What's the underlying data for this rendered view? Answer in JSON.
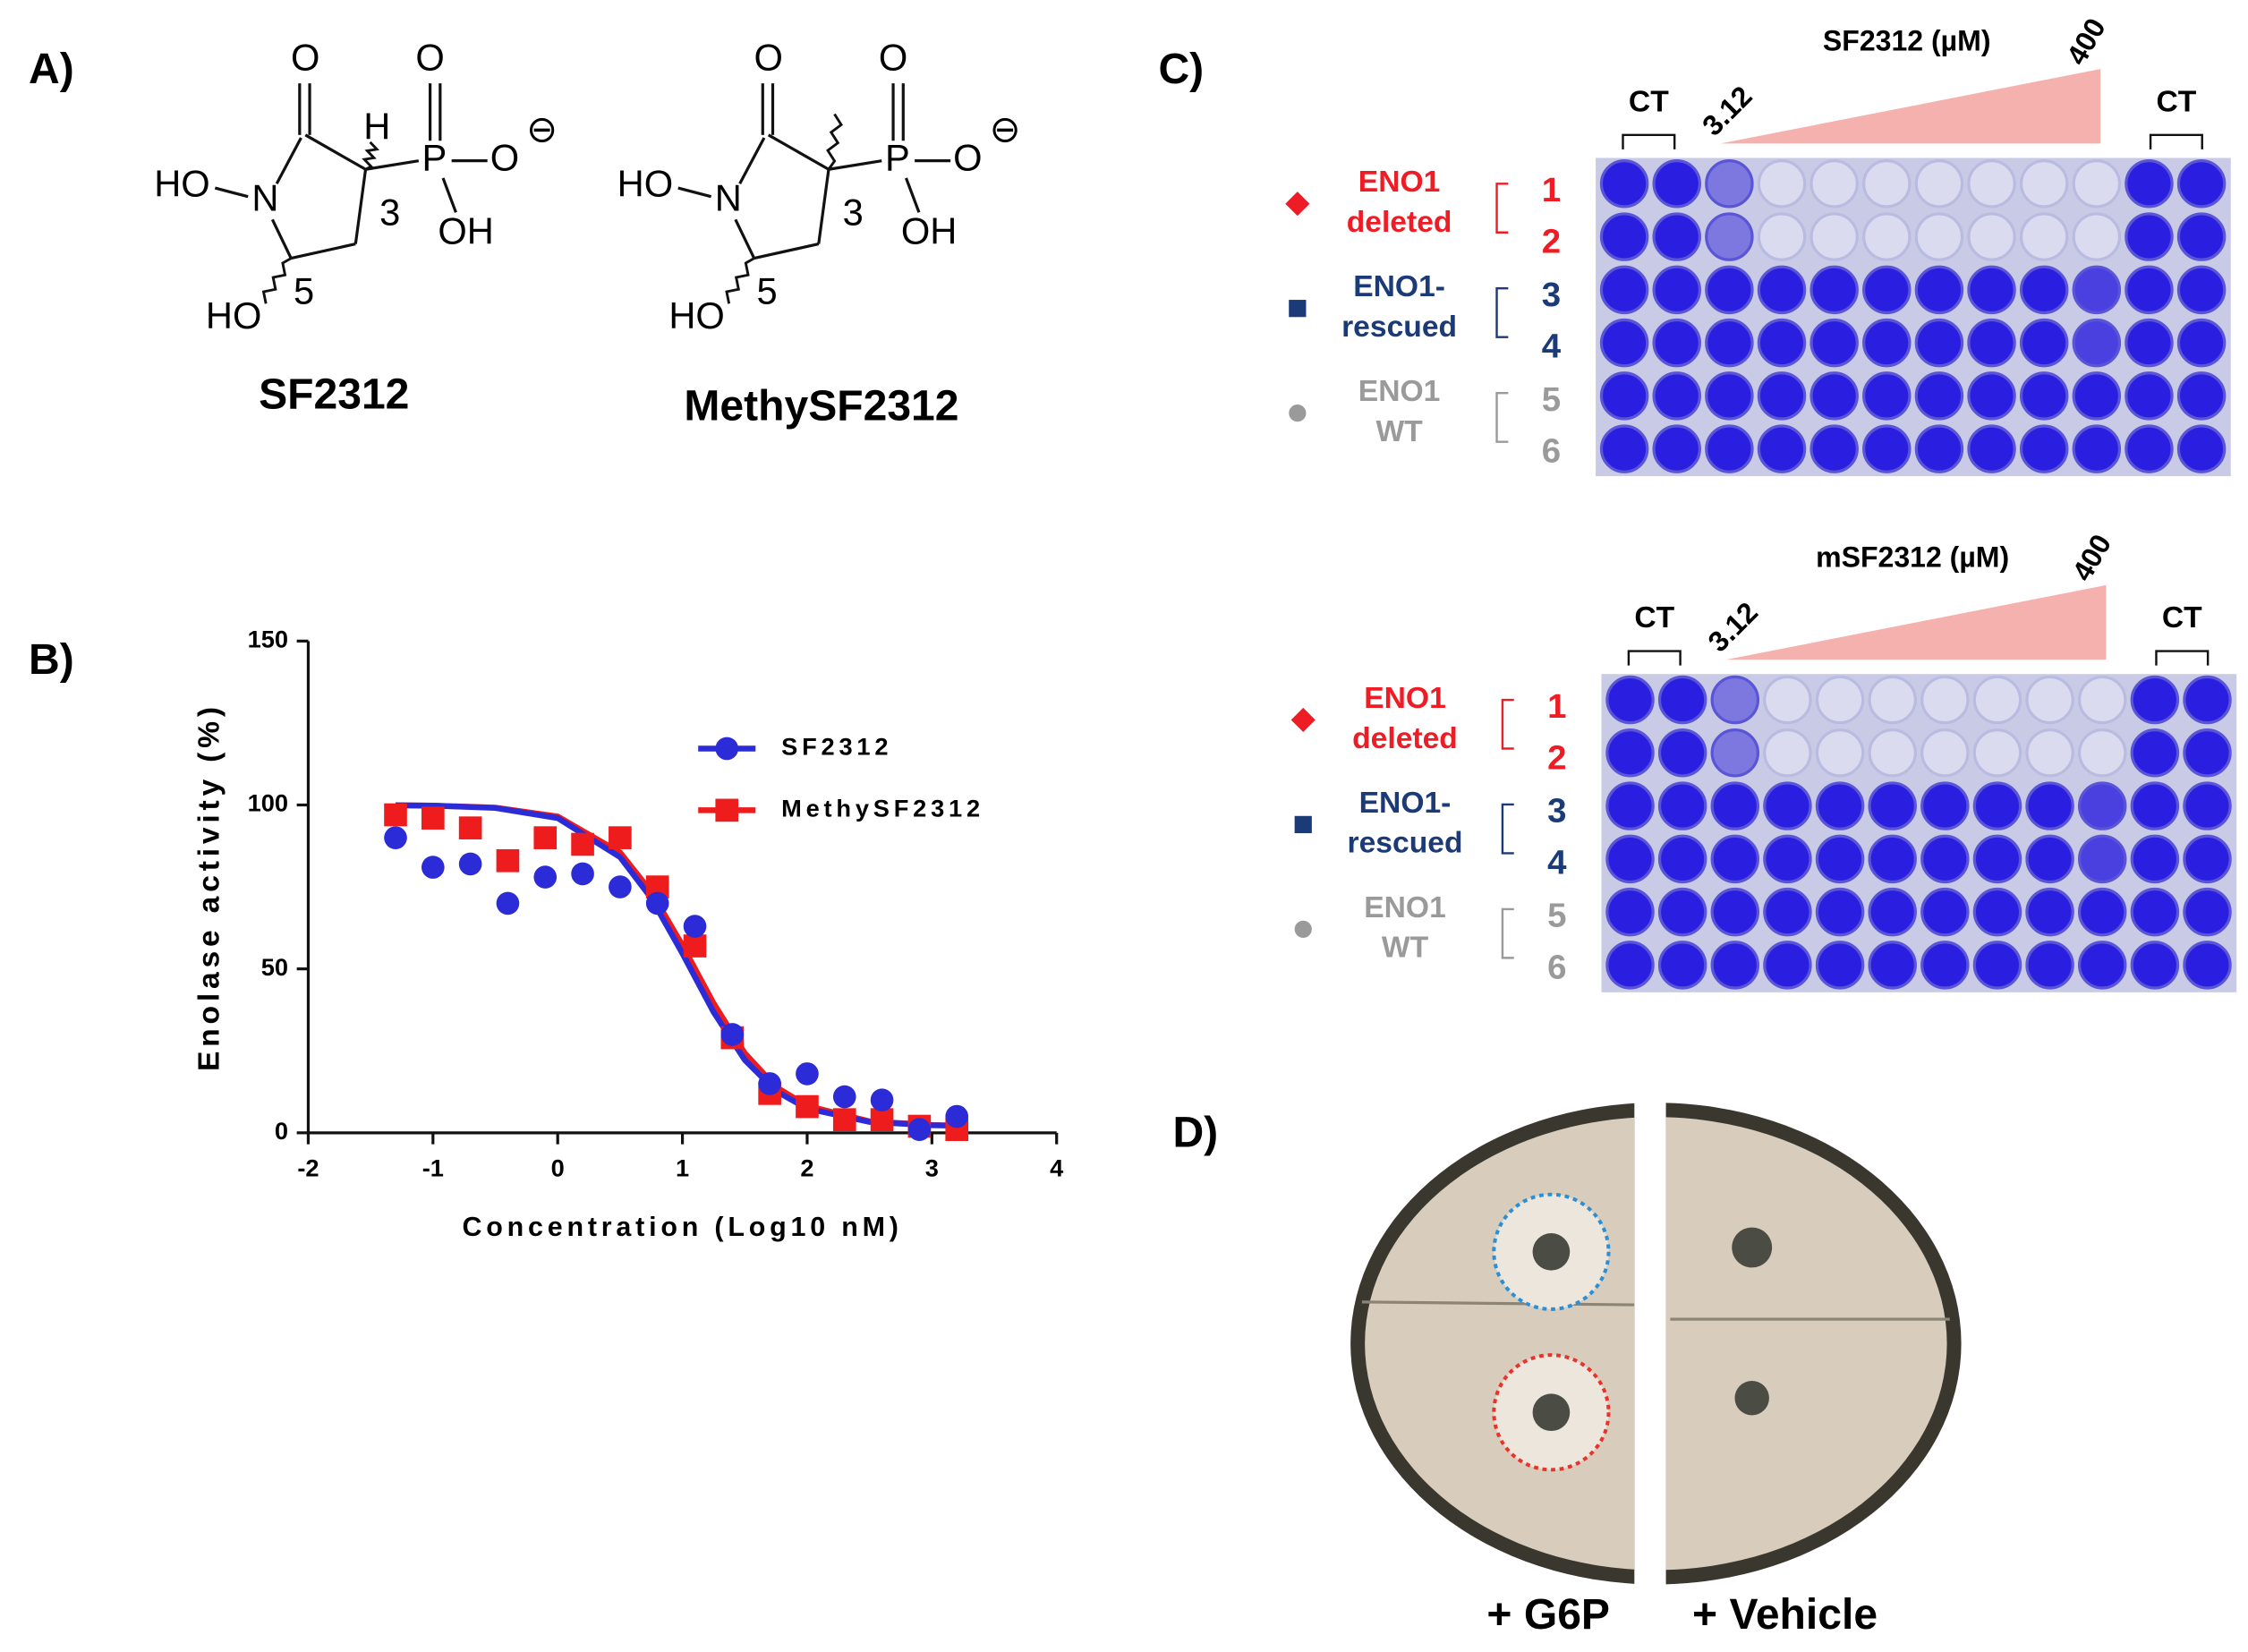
{
  "panel_labels": [
    "A)",
    "B)",
    "C)",
    "D)"
  ],
  "panel_a": {
    "structures": [
      {
        "name": "SF2312",
        "labels": [
          "O",
          "H",
          "O",
          "P",
          "O",
          "⊖",
          "OH",
          "HO",
          "N",
          "3",
          "HO",
          "5"
        ]
      },
      {
        "name": "MethySF2312",
        "labels": [
          "O",
          "O",
          "P",
          "O",
          "⊖",
          "OH",
          "HO",
          "N",
          "3",
          "HO",
          "5"
        ]
      }
    ]
  },
  "chart_data": {
    "type": "scatter",
    "xlabel": "Concentration (Log10 nM)",
    "ylabel": "Enolase activity (%)",
    "xlim": [
      -2,
      4
    ],
    "ylim": [
      0,
      150
    ],
    "xticks": [
      -2,
      -1,
      0,
      1,
      2,
      3,
      4
    ],
    "yticks": [
      0,
      50,
      100,
      150
    ],
    "legend": "upper right",
    "series": [
      {
        "name": "SF2312",
        "color": "#2b2bd8",
        "marker": "circle",
        "x": [
          -1.3,
          -1.0,
          -0.7,
          -0.4,
          -0.1,
          0.2,
          0.5,
          0.8,
          1.1,
          1.4,
          1.7,
          2.0,
          2.3,
          2.6,
          2.9,
          3.2
        ],
        "values": [
          90,
          81,
          82,
          70,
          78,
          79,
          75,
          70,
          63,
          30,
          15,
          18,
          11,
          10,
          1,
          5
        ],
        "fit_x": [
          -1.3,
          -1.0,
          -0.5,
          0,
          0.5,
          0.75,
          1.0,
          1.25,
          1.5,
          1.75,
          2.0,
          2.5,
          3.0,
          3.2
        ],
        "fit_values": [
          99.9,
          99.8,
          99.1,
          96.0,
          84.1,
          71.6,
          54.7,
          36.8,
          22.2,
          12.7,
          7.4,
          3.3,
          2.3,
          2.2
        ]
      },
      {
        "name": "MethySF2312",
        "color": "#ee1c1c",
        "marker": "square",
        "x": [
          -1.3,
          -1.0,
          -0.7,
          -0.4,
          -0.1,
          0.2,
          0.5,
          0.8,
          1.1,
          1.4,
          1.7,
          2.0,
          2.3,
          2.6,
          2.9,
          3.2
        ],
        "values": [
          97,
          96,
          93,
          83,
          90,
          88,
          90,
          75,
          57,
          29,
          12,
          8,
          4,
          4,
          2,
          1
        ],
        "fit_x": [
          -1.3,
          -1.0,
          -0.5,
          0,
          0.5,
          0.75,
          1.0,
          1.25,
          1.5,
          1.75,
          2.0,
          2.5,
          3.0,
          3.2
        ],
        "fit_values": [
          99.9,
          99.8,
          99.2,
          96.5,
          85.5,
          73.5,
          57.2,
          39.5,
          24.3,
          14.0,
          8.2,
          3.5,
          2.4,
          2.2
        ]
      }
    ]
  },
  "panel_c": {
    "groups": [
      {
        "label": [
          "ENO1",
          "deleted"
        ],
        "color": "#ee1c25",
        "marker": "diamond",
        "rows": [
          1,
          2
        ]
      },
      {
        "label": [
          "ENO1-",
          "rescued"
        ],
        "color": "#1a3a78",
        "marker": "square",
        "rows": [
          3,
          4
        ]
      },
      {
        "label": [
          "ENO1",
          "WT"
        ],
        "color": "#9a9a9a",
        "marker": "circle",
        "rows": [
          5,
          6
        ]
      }
    ],
    "plates": [
      {
        "title": "SF2312 (µM)",
        "low": 3.12,
        "high": 400,
        "control": "CT"
      },
      {
        "title": "mSF2312 (µM)",
        "low": 3.12,
        "high": 400,
        "control": "CT"
      }
    ]
  },
  "panel_d": {
    "labels": [
      "+ G6P",
      "+ Vehicle"
    ]
  }
}
